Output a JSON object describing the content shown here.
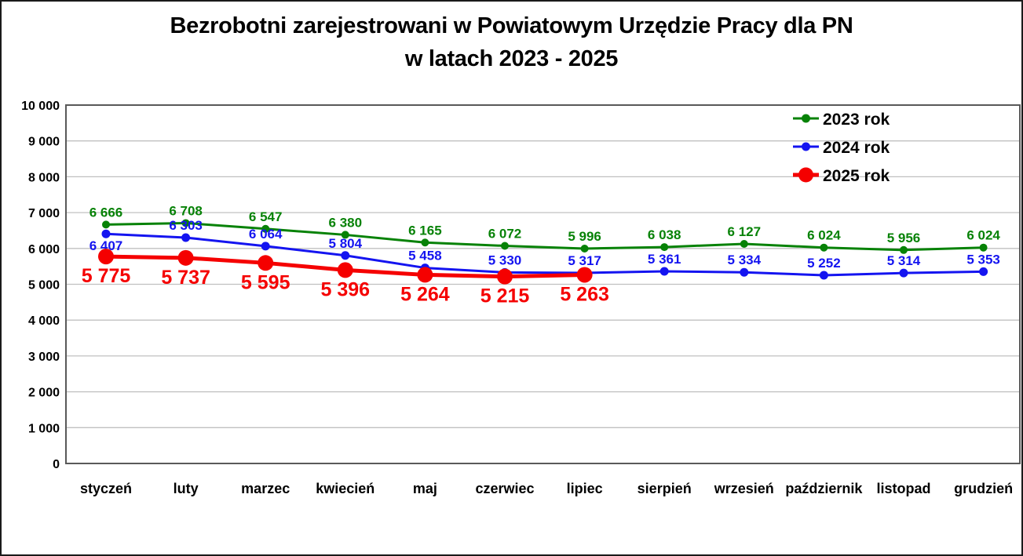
{
  "title": {
    "line1": "Bezrobotni zarejestrowani w Powiatowym Urzędzie Pracy dla PN",
    "line2": "w latach 2023 - 2025"
  },
  "colors": {
    "green": "#078207",
    "blue": "#1414f0",
    "red": "#f50000",
    "grid": "#c0c0c0",
    "plot_border": "#595959",
    "text": "#000000"
  },
  "chart_data": {
    "type": "line",
    "title": "Bezrobotni zarejestrowani w Powiatowym Urzędzie Pracy dla PN w latach 2023 - 2025",
    "categories": [
      "styczeń",
      "luty",
      "marzec",
      "kwiecień",
      "maj",
      "czerwiec",
      "lipiec",
      "sierpień",
      "wrzesień",
      "październik",
      "listopad",
      "grudzień"
    ],
    "xlabel": "",
    "ylabel": "",
    "ylim": [
      0,
      10000
    ],
    "grid": true,
    "legend_position": "top-right",
    "y_ticks": {
      "values": [
        0,
        1000,
        2000,
        3000,
        4000,
        5000,
        6000,
        7000,
        8000,
        9000,
        10000
      ],
      "labels": [
        "0",
        "1 000",
        "2 000",
        "3 000",
        "4 000",
        "5 000",
        "6 000",
        "7 000",
        "8 000",
        "9 000",
        "10 000"
      ]
    },
    "series": [
      {
        "name": "2023 rok",
        "color_key": "green",
        "line_width": 3,
        "marker_radius": 5,
        "label_position": "above",
        "values": [
          6666,
          6708,
          6547,
          6380,
          6165,
          6072,
          5996,
          6038,
          6127,
          6024,
          5956,
          6024
        ],
        "labels": [
          "6 666",
          "6 708",
          "6 547",
          "6 380",
          "6 165",
          "6 072",
          "5 996",
          "6 038",
          "6 127",
          "6 024",
          "5 956",
          "6 024"
        ]
      },
      {
        "name": "2024 rok",
        "color_key": "blue",
        "line_width": 3,
        "marker_radius": 5.5,
        "label_position": "above",
        "first_label_below": true,
        "values": [
          6407,
          6303,
          6064,
          5804,
          5458,
          5330,
          5317,
          5361,
          5334,
          5252,
          5314,
          5353
        ],
        "labels": [
          "6 407",
          "6 303",
          "6 064",
          "5 804",
          "5 458",
          "5 330",
          "5 317",
          "5 361",
          "5 334",
          "5 252",
          "5 314",
          "5 353"
        ]
      },
      {
        "name": "2025 rok",
        "color_key": "red",
        "line_width": 5,
        "marker_radius": 10,
        "label_position": "below",
        "values": [
          5775,
          5737,
          5595,
          5396,
          5264,
          5215,
          5263
        ],
        "labels": [
          "5 775",
          "5 737",
          "5 595",
          "5 396",
          "5 264",
          "5 215",
          "5 263"
        ]
      }
    ]
  }
}
